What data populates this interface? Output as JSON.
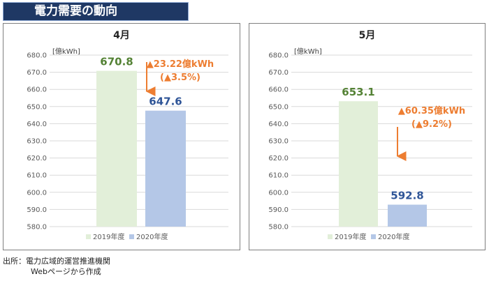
{
  "header": {
    "title": "電力需要の動向"
  },
  "chart_data": [
    {
      "type": "bar",
      "title": "4月",
      "unit_label": "[億kWh]",
      "categories": [
        "2019年度",
        "2020年度"
      ],
      "values": [
        670.8,
        647.6
      ],
      "value_labels": [
        "670.8",
        "647.6"
      ],
      "ylim": [
        580,
        680
      ],
      "yticks": [
        "580.0",
        "590.0",
        "600.0",
        "610.0",
        "620.0",
        "630.0",
        "640.0",
        "650.0",
        "660.0",
        "670.0",
        "680.0"
      ],
      "grid": true,
      "legend": [
        "2019年度",
        "2020年度"
      ],
      "legend_position": "bottom",
      "annotation": [
        "▲23.22億kWh",
        "(▲3.5%)"
      ]
    },
    {
      "type": "bar",
      "title": "5月",
      "unit_label": "[億kWh]",
      "categories": [
        "2019年度",
        "2020年度"
      ],
      "values": [
        653.1,
        592.8
      ],
      "value_labels": [
        "653.1",
        "592.8"
      ],
      "ylim": [
        580,
        680
      ],
      "yticks": [
        "580.0",
        "590.0",
        "600.0",
        "610.0",
        "620.0",
        "630.0",
        "640.0",
        "650.0",
        "660.0",
        "670.0",
        "680.0"
      ],
      "grid": true,
      "legend": [
        "2019年度",
        "2020年度"
      ],
      "legend_position": "bottom",
      "annotation": [
        "▲60.35億kWh",
        "(▲9.2%)"
      ]
    }
  ],
  "colors": {
    "bar_2019": "#e2efd9",
    "bar_2020": "#b4c7e7",
    "label_2019": "#548235",
    "label_2020": "#2f5597",
    "annotation": "#ed7d31",
    "grid": "#d9d9d9",
    "title_bg": "#1f3864"
  },
  "source": {
    "line1": "出所：電力広域的運営推進機関",
    "line2": "Webページから作成"
  }
}
